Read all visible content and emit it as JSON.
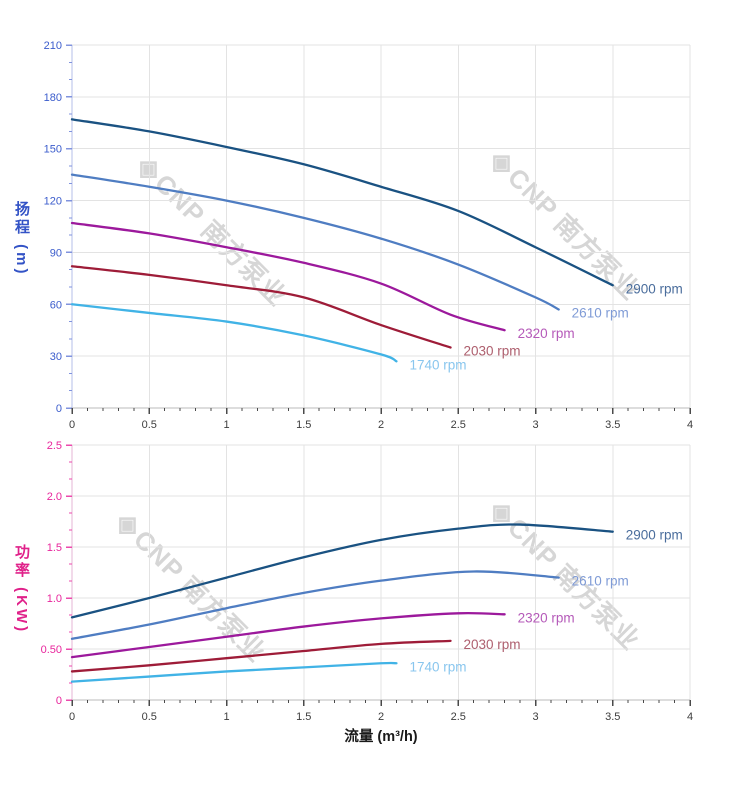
{
  "page": {
    "background": "#ffffff"
  },
  "watermark": {
    "logo_icon": "◈",
    "text": "CNP 南方泵业",
    "color": "#d6d6d6"
  },
  "chart_data": [
    {
      "type": "line",
      "name": "head-vs-flow-chart",
      "title": "",
      "xlabel": "",
      "ylabel": "扬程 (m)",
      "xlim": [
        0,
        4
      ],
      "ylim": [
        0,
        210
      ],
      "grid": true,
      "legend_position": "end-of-curve",
      "x_major_ticks": [
        0,
        0.5,
        1,
        1.5,
        2,
        2.5,
        3,
        3.5,
        4
      ],
      "x_tick_labels": [
        "0",
        "0.5",
        "1",
        "1.5",
        "2",
        "2.5",
        "3",
        "3.5",
        "4"
      ],
      "x_minor_divisions": 5,
      "y_major_ticks": [
        0,
        30,
        60,
        90,
        120,
        150,
        180,
        210
      ],
      "y_tick_labels": [
        "0",
        "30",
        "60",
        "90",
        "120",
        "150",
        "180",
        "210"
      ],
      "y_minor_divisions": 3,
      "style": {
        "grid_color": "#e3e3e3",
        "y_axis_line_color": "#b4bfe8",
        "y_tick_color": "#8093de",
        "y_label_color": "#3b5ccc",
        "x_axis_line_color": "#bbbbbb",
        "x_tick_color": "#4a4a4a",
        "x_label_color": "#3d3d3d"
      },
      "series": [
        {
          "name": "2900 rpm",
          "color": "#1a5282",
          "label_color": "#4a6d9c",
          "points": [
            [
              0,
              167
            ],
            [
              0.5,
              160
            ],
            [
              1,
              151
            ],
            [
              1.5,
              141
            ],
            [
              2,
              128
            ],
            [
              2.5,
              114
            ],
            [
              3,
              93
            ],
            [
              3.5,
              71
            ]
          ]
        },
        {
          "name": "2610 rpm",
          "color": "#4f7dc2",
          "label_color": "#7f9bd6",
          "points": [
            [
              0,
              135
            ],
            [
              0.5,
              128
            ],
            [
              1,
              120
            ],
            [
              1.5,
              110
            ],
            [
              2,
              98
            ],
            [
              2.5,
              83
            ],
            [
              3,
              64
            ],
            [
              3.15,
              57
            ]
          ]
        },
        {
          "name": "2320 rpm",
          "color": "#9c199c",
          "label_color": "#b55ab9",
          "points": [
            [
              0,
              107
            ],
            [
              0.5,
              101
            ],
            [
              1,
              93
            ],
            [
              1.5,
              84
            ],
            [
              2,
              72
            ],
            [
              2.45,
              54
            ],
            [
              2.8,
              45
            ]
          ]
        },
        {
          "name": "2030 rpm",
          "color": "#9e1c38",
          "label_color": "#ae5f6e",
          "points": [
            [
              0,
              82
            ],
            [
              0.5,
              77
            ],
            [
              1,
              71
            ],
            [
              1.5,
              64
            ],
            [
              2,
              48
            ],
            [
              2.45,
              35
            ]
          ]
        },
        {
          "name": "1740 rpm",
          "color": "#41b3e6",
          "label_color": "#89c6ee",
          "points": [
            [
              0,
              60
            ],
            [
              0.5,
              55
            ],
            [
              1,
              50
            ],
            [
              1.5,
              42
            ],
            [
              2,
              31
            ],
            [
              2.1,
              27
            ]
          ]
        }
      ]
    },
    {
      "type": "line",
      "name": "power-vs-flow-chart",
      "title": "",
      "xlabel": "流量 (m³/h)",
      "ylabel": "功率 (KW)",
      "xlim": [
        0,
        4
      ],
      "ylim": [
        0,
        2.5
      ],
      "grid": true,
      "legend_position": "end-of-curve",
      "x_major_ticks": [
        0,
        0.5,
        1,
        1.5,
        2,
        2.5,
        3,
        3.5,
        4
      ],
      "x_tick_labels": [
        "0",
        "0.5",
        "1",
        "1.5",
        "2",
        "2.5",
        "3",
        "3.5",
        "4"
      ],
      "x_minor_divisions": 5,
      "y_major_ticks": [
        0,
        0.5,
        1.0,
        1.5,
        2.0,
        2.5
      ],
      "y_tick_labels": [
        "0",
        "0.50",
        "1.0",
        "1.5",
        "2.0",
        "2.5"
      ],
      "y_minor_divisions": 3,
      "style": {
        "grid_color": "#e3e3e3",
        "y_axis_line_color": "#e6b6d4",
        "y_tick_color": "#ec4aad",
        "y_label_color": "#e8259c",
        "x_axis_line_color": "#bbbbbb",
        "x_tick_color": "#4a4a4a",
        "x_label_color": "#3d3d3d"
      },
      "series": [
        {
          "name": "2900 rpm",
          "color": "#1a5282",
          "label_color": "#4a6d9c",
          "points": [
            [
              0,
              0.81
            ],
            [
              0.5,
              1.0
            ],
            [
              1,
              1.2
            ],
            [
              1.5,
              1.4
            ],
            [
              2,
              1.57
            ],
            [
              2.5,
              1.68
            ],
            [
              2.9,
              1.72
            ],
            [
              3.5,
              1.65
            ]
          ]
        },
        {
          "name": "2610 rpm",
          "color": "#4f7dc2",
          "label_color": "#7f9bd6",
          "points": [
            [
              0,
              0.6
            ],
            [
              0.5,
              0.74
            ],
            [
              1,
              0.9
            ],
            [
              1.5,
              1.05
            ],
            [
              2,
              1.17
            ],
            [
              2.6,
              1.26
            ],
            [
              3.15,
              1.2
            ]
          ]
        },
        {
          "name": "2320 rpm",
          "color": "#9c199c",
          "label_color": "#b55ab9",
          "points": [
            [
              0,
              0.42
            ],
            [
              0.5,
              0.52
            ],
            [
              1,
              0.62
            ],
            [
              1.5,
              0.72
            ],
            [
              2,
              0.8
            ],
            [
              2.5,
              0.85
            ],
            [
              2.8,
              0.84
            ]
          ]
        },
        {
          "name": "2030 rpm",
          "color": "#9e1c38",
          "label_color": "#ae5f6e",
          "points": [
            [
              0,
              0.28
            ],
            [
              0.5,
              0.34
            ],
            [
              1,
              0.41
            ],
            [
              1.5,
              0.48
            ],
            [
              2,
              0.55
            ],
            [
              2.45,
              0.58
            ]
          ]
        },
        {
          "name": "1740 rpm",
          "color": "#41b3e6",
          "label_color": "#89c6ee",
          "points": [
            [
              0,
              0.18
            ],
            [
              0.5,
              0.23
            ],
            [
              1,
              0.28
            ],
            [
              1.5,
              0.32
            ],
            [
              2,
              0.36
            ],
            [
              2.1,
              0.36
            ]
          ]
        }
      ]
    }
  ]
}
